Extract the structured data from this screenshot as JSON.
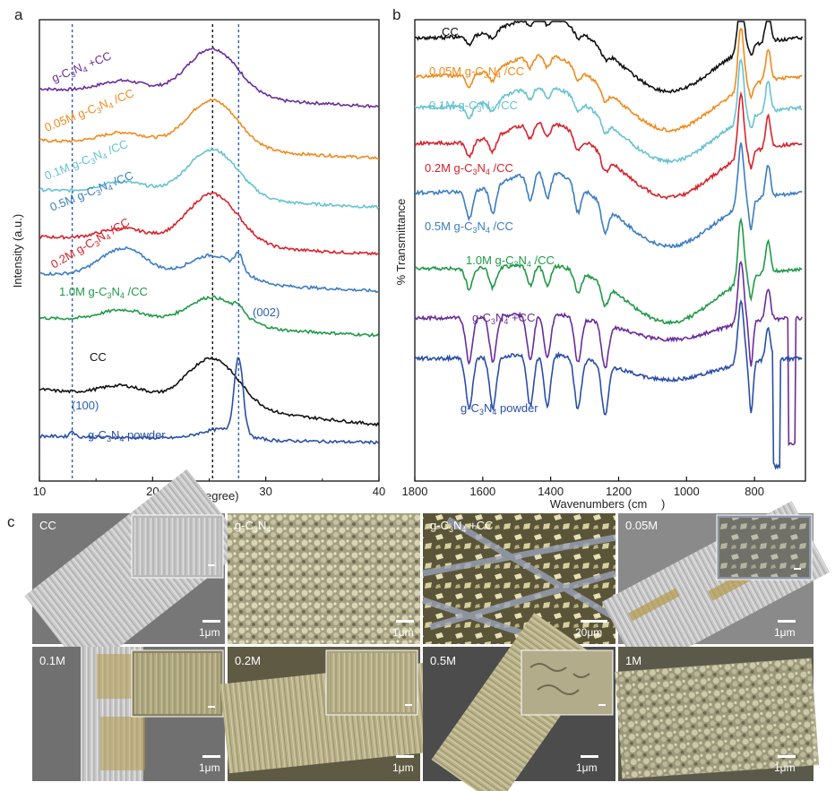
{
  "panels": {
    "a": "a",
    "b": "b",
    "c": "c"
  },
  "colors": {
    "purple": "#6a2d9a",
    "orange": "#f08a1c",
    "cyan": "#67c2d2",
    "red": "#d8222b",
    "blue": "#3b7cc4",
    "green": "#1f9a48",
    "black": "#111111",
    "navy": "#2a4fa8"
  },
  "chart_data": [
    {
      "type": "line",
      "panel": "a",
      "xlabel": "2θ (degree)",
      "ylabel": "Intensity (a.u.)",
      "xlim": [
        10,
        40
      ],
      "xticks": [
        10,
        20,
        30,
        40
      ],
      "reference_lines": [
        {
          "x": 25.3,
          "color": "#111111"
        },
        {
          "x": 27.6,
          "color": "#2a5fb8"
        },
        {
          "x": 12.9,
          "color": "#2a5fb8"
        }
      ],
      "annotations": [
        "(002)",
        "(100)"
      ],
      "series": [
        {
          "name": "g-C3N4 +CC",
          "color": "#6a2d9a",
          "stacked_offset": 7
        },
        {
          "name": "0.05M g-C3N4 /CC",
          "color": "#f08a1c",
          "stacked_offset": 6
        },
        {
          "name": "0.1M g-C3N4 /CC",
          "color": "#67c2d2",
          "stacked_offset": 5
        },
        {
          "name": "0.2M g-C3N4 /CC",
          "color": "#d8222b",
          "stacked_offset": 4
        },
        {
          "name": "0.5M g-C3N4 /CC",
          "color": "#3b7cc4",
          "stacked_offset": 3
        },
        {
          "name": "1.0M g-C3N4 /CC",
          "color": "#1f9a48",
          "stacked_offset": 2
        },
        {
          "name": "CC",
          "color": "#111111",
          "stacked_offset": 1
        },
        {
          "name": "g-C3N4 powder",
          "color": "#2a4fa8",
          "stacked_offset": 0
        }
      ],
      "peaks": {
        "cc_broad": 25.3,
        "gcn_002": 27.6,
        "gcn_100": 12.9
      }
    },
    {
      "type": "line",
      "panel": "b",
      "xlabel": "Wavenumbers (cm",
      "ylabel": "% Transmittance",
      "xlim": [
        1800,
        650
      ],
      "xticks": [
        1800,
        1600,
        1400,
        1200,
        1000,
        800
      ],
      "series": [
        {
          "name": "CC",
          "color": "#111111"
        },
        {
          "name": "0.05M g-C3N4 /CC",
          "color": "#f08a1c"
        },
        {
          "name": "0.1M g-C3N4 /CC",
          "color": "#67c2d2"
        },
        {
          "name": "0.2M g-C3N4 /CC",
          "color": "#d8222b"
        },
        {
          "name": "0.5M g-C3N4 /CC",
          "color": "#3b7cc4"
        },
        {
          "name": "1.0M g-C3N4 /CC",
          "color": "#1f9a48"
        },
        {
          "name": "g-C3N4 +CC",
          "color": "#6a2d9a"
        },
        {
          "name": "g-C3N4 powder",
          "color": "#2a4fa8"
        }
      ],
      "bands": [
        1640,
        1570,
        1460,
        1410,
        1320,
        1240,
        810
      ]
    }
  ],
  "sem_tiles": [
    {
      "label": "CC",
      "scale": "1μm",
      "inset": true
    },
    {
      "label": "g-C3N4",
      "scale": "1μm",
      "inset": false
    },
    {
      "label": "g-C3N4 +CC",
      "scale": "20μm",
      "inset": false
    },
    {
      "label": "0.05M",
      "scale": "1μm",
      "inset": true
    },
    {
      "label": "0.1M",
      "scale": "1μm",
      "inset": true
    },
    {
      "label": "0.2M",
      "scale": "1μm",
      "inset": true
    },
    {
      "label": "0.5M",
      "scale": "1μm",
      "inset": true
    },
    {
      "label": "1M",
      "scale": "1μm",
      "inset": false
    }
  ]
}
